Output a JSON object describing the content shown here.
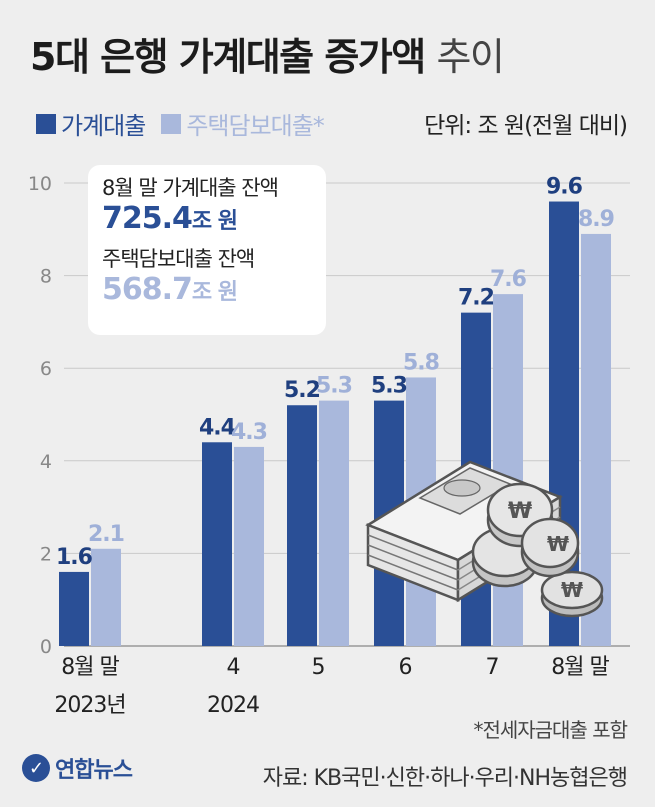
{
  "header": {
    "title_bold": "5대 은행 가계대출 증가액",
    "title_light": "추이",
    "unit": "단위: 조 원(전월 대비)"
  },
  "infobox": {
    "label1": "8월 말 가계대출 잔액",
    "value1": "725.4",
    "unit1": "조 원",
    "label2": "주택담보대출 잔액",
    "value2": "568.7",
    "unit2": "조 원"
  },
  "footer": {
    "note": "*전세자금대출 포함",
    "source": "자료: KB국민·신한·하나·우리·NH농협은행",
    "logo_text": "연합뉴스"
  },
  "colors": {
    "household": "#2a4f96",
    "mortgage": "#a9b8dc"
  },
  "icons": [
    "money-stack-icon",
    "coin-stack-icon",
    "yonhap-logo-icon"
  ],
  "chart_data": {
    "type": "bar",
    "categories": [
      "8월 말|2023년",
      "4|2024",
      "5",
      "6",
      "7",
      "8월 말"
    ],
    "series": [
      {
        "name": "가계대출",
        "values": [
          1.6,
          4.4,
          5.2,
          5.3,
          7.2,
          9.6
        ]
      },
      {
        "name": "주택담보대출*",
        "values": [
          2.1,
          4.3,
          5.3,
          5.8,
          7.6,
          8.9
        ]
      }
    ],
    "ylim": [
      0,
      10
    ],
    "yticks": [
      0,
      2,
      4,
      6,
      8,
      10
    ],
    "grid": true,
    "legend": "top-left"
  }
}
